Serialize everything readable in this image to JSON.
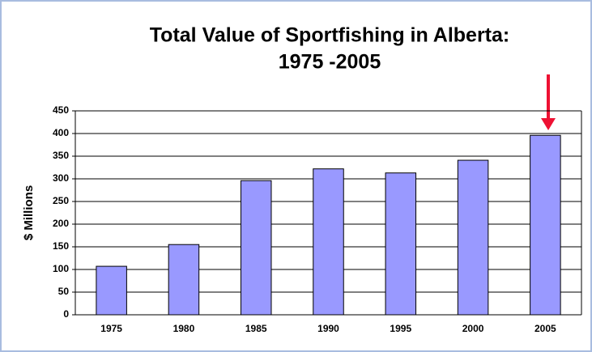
{
  "chart_data": {
    "type": "bar",
    "title": [
      "Total Value of Sportfishing in Alberta:",
      "1975 -2005"
    ],
    "ylabel": "$ Millions",
    "categories": [
      "1975",
      "1980",
      "1985",
      "1990",
      "1995",
      "2000",
      "2005"
    ],
    "values": [
      107,
      155,
      296,
      322,
      313,
      341,
      396
    ],
    "color": "#9999ff",
    "ylim": [
      0,
      450
    ],
    "yticks": [
      0,
      50,
      100,
      150,
      200,
      250,
      300,
      350,
      400,
      450
    ],
    "grid": true
  }
}
